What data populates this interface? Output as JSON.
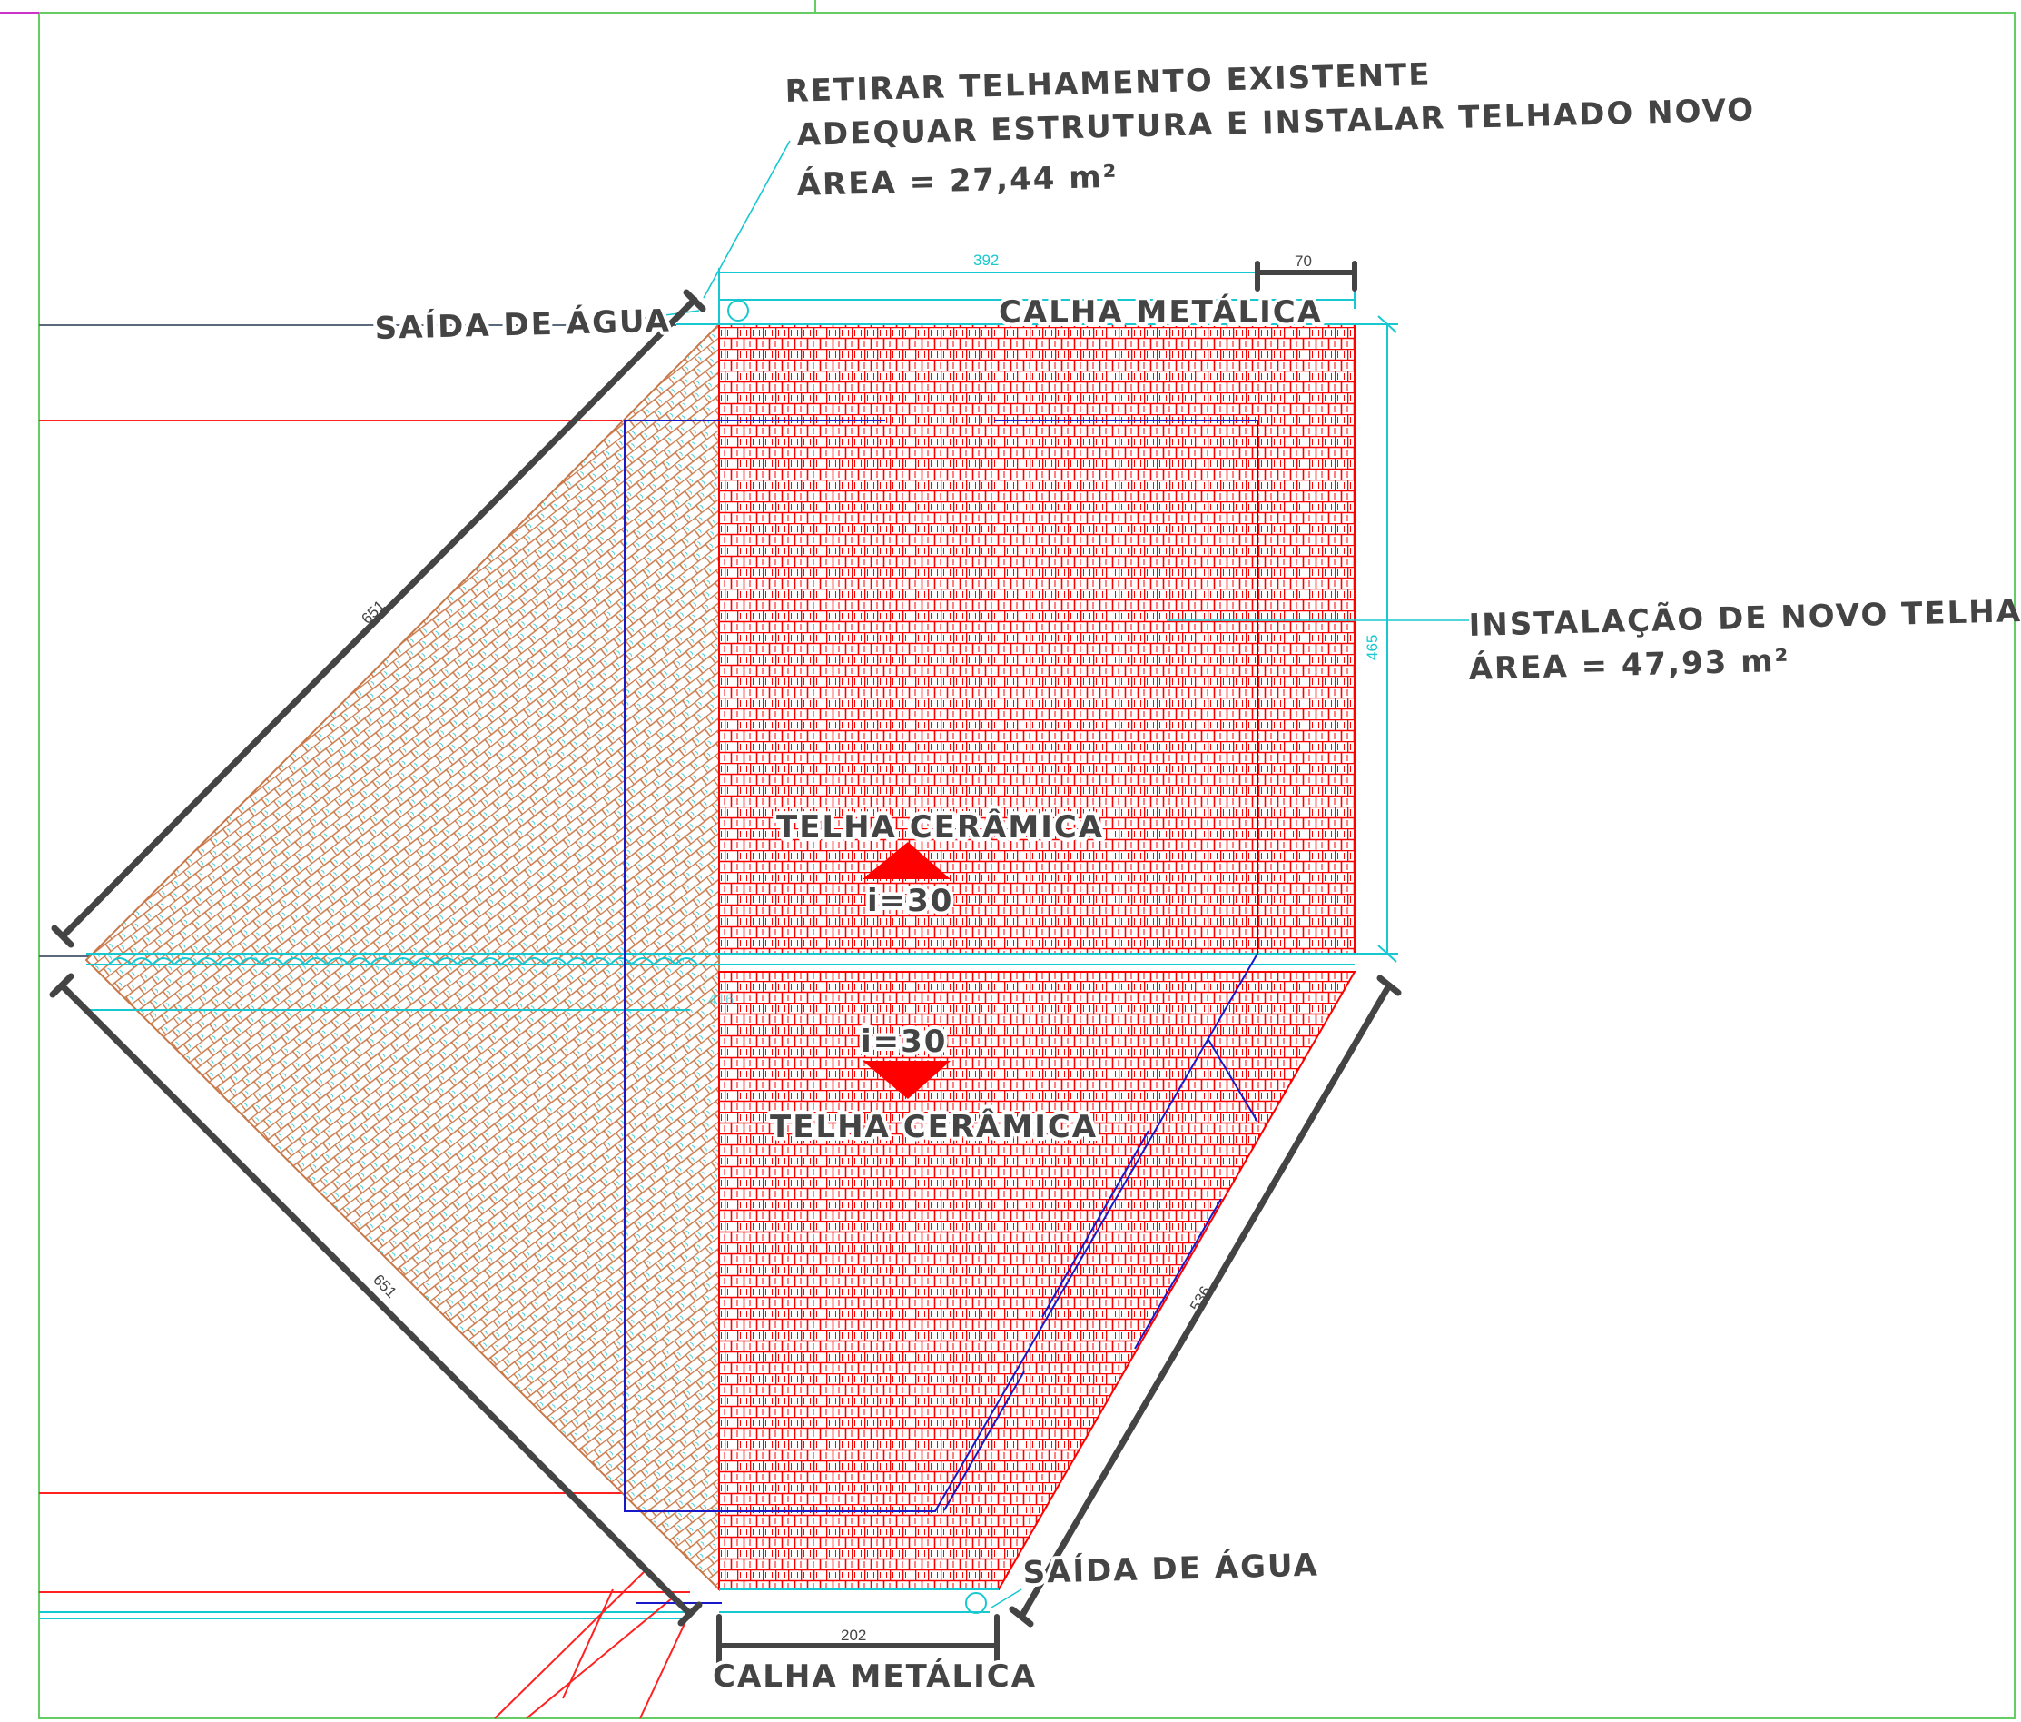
{
  "annotations": {
    "remove_roof_line1": "RETIRAR TELHAMENTO EXISTENTE",
    "remove_roof_line2": "ADEQUAR ESTRUTURA E INSTALAR TELHADO NOVO",
    "remove_roof_area": "ÁREA = 27,44 m²",
    "new_roof_line1": "INSTALAÇÃO DE NOVO TELHADO",
    "new_roof_area": "ÁREA = 47,93 m²",
    "water_outlet_top": "SAÍDA DE ÁGUA",
    "water_outlet_bottom": "SAÍDA DE ÁGUA",
    "gutter_top": "CALHA METÁLICA",
    "gutter_bottom": "CALHA METÁLICA",
    "tile_upper": "TELHA CERÂMICA",
    "tile_lower": "TELHA CERÂMICA",
    "slope_upper": "i=30",
    "slope_lower": "i=30"
  },
  "dimensions": {
    "top_width": "392",
    "top_overhang": "70",
    "right_height": "465",
    "left_upper_diagonal": "651",
    "left_lower_diagonal": "651",
    "right_lower_diagonal": "536",
    "bottom_gutter": "202",
    "mid_faint": "416"
  },
  "colors": {
    "tile_red": "#ff0000",
    "old_tile_brown": "#c87848",
    "cyan_lines": "#18c8d0",
    "blue_outline": "#1818c8",
    "dim_dark": "#444444",
    "frame_green": "#66cc66"
  }
}
